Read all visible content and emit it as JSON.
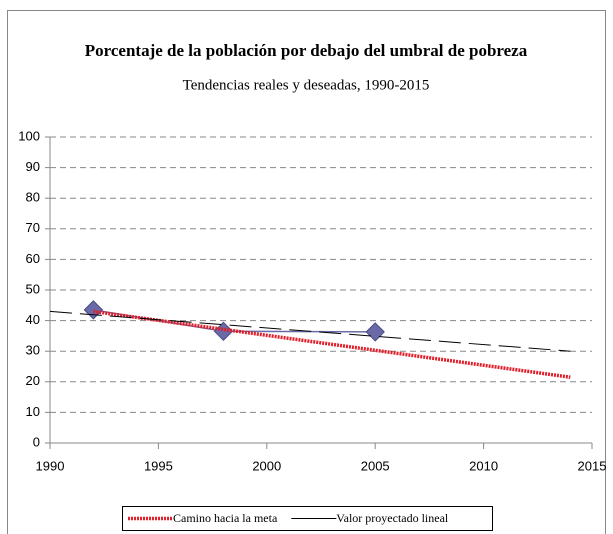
{
  "chart_data": {
    "type": "line",
    "title": "Porcentaje de la población por debajo del umbral de pobreza",
    "subtitle": "Tendencias reales y deseadas, 1990-2015",
    "xlim": [
      1990,
      2015
    ],
    "xticks": [
      1990,
      1995,
      2000,
      2005,
      2010,
      2015
    ],
    "ylim": [
      0,
      100
    ],
    "yticks": [
      0,
      10,
      20,
      30,
      40,
      50,
      60,
      70,
      80,
      90,
      100
    ],
    "grid": true,
    "legend": "bottom",
    "series": [
      {
        "color": "#6a6aa8",
        "marker": "diamond",
        "x": [
          1992,
          1998,
          2005
        ],
        "values": [
          43.5,
          36.5,
          36.3
        ]
      },
      {
        "name": "Camino hacia la meta",
        "color": "#e0202a",
        "x": [
          1992,
          2014
        ],
        "values": [
          43,
          21.5
        ]
      },
      {
        "name": "Valor proyectado lineal",
        "color": "#000000",
        "dashed": true,
        "x": [
          1990,
          2014
        ],
        "values": [
          43,
          30
        ]
      }
    ]
  }
}
